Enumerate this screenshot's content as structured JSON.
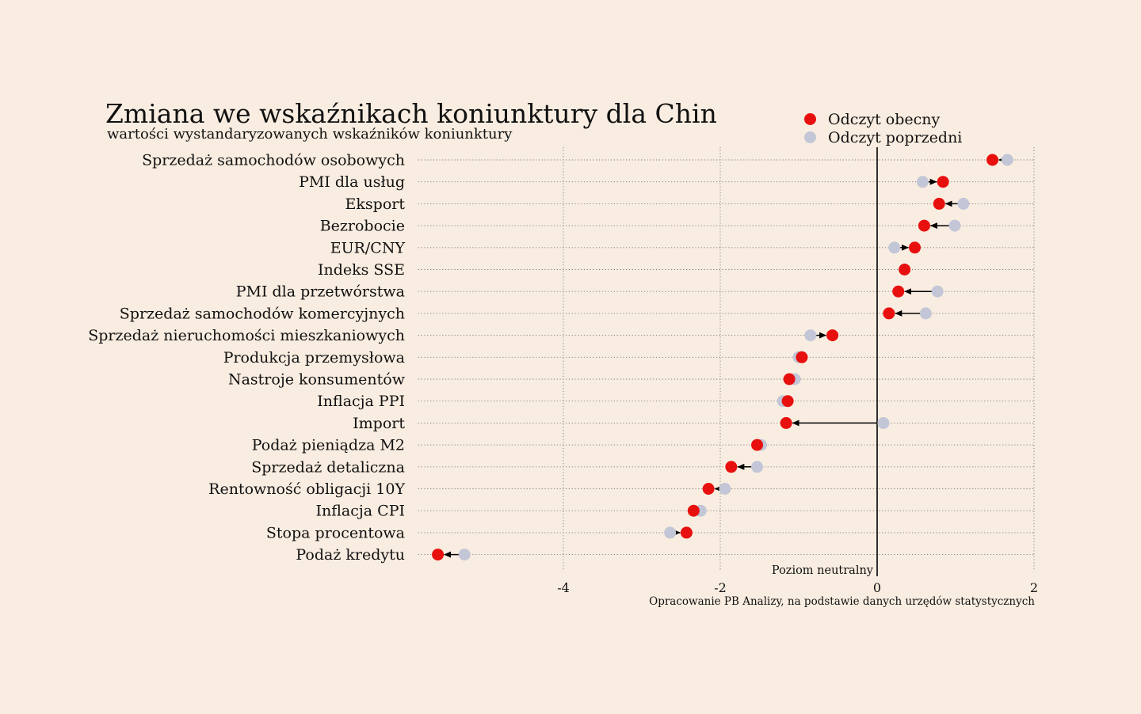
{
  "chart_data": {
    "type": "scatter",
    "title": "Zmiana we wskaźnikach koniunktury dla Chin",
    "subtitle": "wartości wystandaryzowanych wskaźników koniunktury",
    "source": "Opracowanie PB Analizy, na podstawie danych urzędów statystycznych",
    "categories": [
      "Sprzedaż samochodów osobowych",
      "PMI dla usług",
      "Eksport",
      "Bezrobocie",
      "EUR/CNY",
      "Indeks SSE",
      "PMI dla przetwórstwa",
      "Sprzedaż samochodów komercyjnych",
      "Sprzedaż nieruchomości mieszkaniowych",
      "Produkcja przemysłowa",
      "Nastroje konsumentów",
      "Inflacja PPI",
      "Import",
      "Podaż pieniądza M2",
      "Sprzedaż detaliczna",
      "Rentowność obligacji 10Y",
      "Inflacja CPI",
      "Stopa procentowa",
      "Podaż kredytu"
    ],
    "series": [
      {
        "name": "Odczyt obecny",
        "color": "#e8100f",
        "values": [
          1.47,
          0.84,
          0.79,
          0.6,
          0.48,
          0.35,
          0.27,
          0.15,
          -0.57,
          -0.96,
          -1.12,
          -1.14,
          -1.16,
          -1.53,
          -1.86,
          -2.15,
          -2.34,
          -2.43,
          -5.6
        ]
      },
      {
        "name": "Odczyt poprzedni",
        "color": "#c2c6d6",
        "values": [
          1.66,
          0.58,
          1.1,
          0.99,
          0.22,
          0.35,
          0.77,
          0.62,
          -0.85,
          -1.0,
          -1.05,
          -1.2,
          0.08,
          -1.48,
          -1.53,
          -1.94,
          -2.25,
          -2.64,
          -5.26
        ]
      }
    ],
    "xlim": [
      -5.85,
      2.0
    ],
    "xticks": [
      "-4",
      "-2",
      "0",
      "2"
    ],
    "xtick_values": [
      -4,
      -2,
      0,
      2
    ],
    "grid": true,
    "legend_position": "top-right",
    "reference_line": {
      "x": 0,
      "label": "Poziom neutralny"
    }
  }
}
